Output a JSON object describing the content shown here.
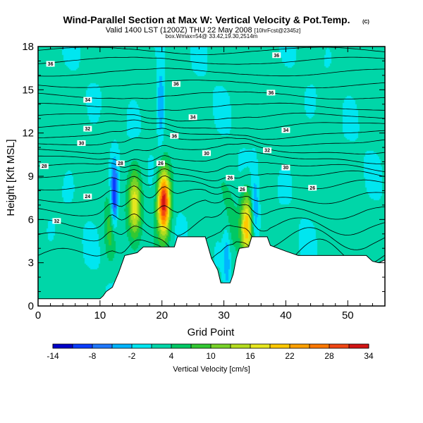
{
  "title": "Wind-Parallel Section at Max W: Vertical Velocity & Pot.Temp.",
  "title_mark": "(C)",
  "subtitle": "Valid 1400 LST (1200Z) THU 22 May 2008",
  "subtitle_sm": "[10hrFcst@2345z]",
  "subtitle2": "box.Wmax=54@ 33.42,19.30,2514m",
  "chart_data": {
    "type": "heatmap",
    "title": "Wind-Parallel Section at Max W: Vertical Velocity & Pot.Temp.",
    "xlabel": "Grid Point",
    "ylabel": "Height [Kft MSL]",
    "xlim": [
      0,
      56
    ],
    "ylim": [
      0,
      18
    ],
    "xticks": [
      0,
      10,
      20,
      30,
      40,
      50
    ],
    "yticks": [
      0,
      3,
      6,
      9,
      12,
      15,
      18
    ],
    "colorbar": {
      "label": "Vertical Velocity [cm/s]",
      "ticks": [
        -14,
        -8,
        -2,
        4,
        10,
        16,
        22,
        28,
        34
      ],
      "levels": [
        -14,
        -11,
        -8,
        -5,
        -2,
        1,
        4,
        7,
        10,
        13,
        16,
        19,
        22,
        25,
        28,
        31,
        34
      ],
      "colors": [
        "#0000c8",
        "#0a3cff",
        "#1e78ff",
        "#00b4ff",
        "#00e6f0",
        "#00d6a8",
        "#00c864",
        "#32c832",
        "#78d228",
        "#b4dc1e",
        "#e6e61e",
        "#ffc800",
        "#ffa000",
        "#ff7800",
        "#f04614",
        "#d21414"
      ]
    },
    "terrain": [
      [
        0,
        0.5
      ],
      [
        5,
        0.5
      ],
      [
        10,
        0.5
      ],
      [
        10.5,
        0.7
      ],
      [
        11,
        1.0
      ],
      [
        12,
        1.3
      ],
      [
        13,
        2.3
      ],
      [
        14,
        3.5
      ],
      [
        16,
        3.7
      ],
      [
        17,
        4.1
      ],
      [
        22,
        4.1
      ],
      [
        22.5,
        4.8
      ],
      [
        27,
        4.8
      ],
      [
        28,
        3.3
      ],
      [
        29,
        2.5
      ],
      [
        29.5,
        1.6
      ],
      [
        31,
        1.6
      ],
      [
        31.5,
        2.2
      ],
      [
        32,
        3.3
      ],
      [
        32.5,
        4.0
      ],
      [
        34,
        4.1
      ],
      [
        34.5,
        4.8
      ],
      [
        37,
        4.8
      ],
      [
        37.5,
        4.2
      ],
      [
        40,
        3.8
      ],
      [
        42,
        3.5
      ],
      [
        53,
        3.5
      ],
      [
        53.5,
        3.3
      ],
      [
        54,
        3.1
      ],
      [
        55,
        3.0
      ],
      [
        56,
        3.2
      ]
    ],
    "updrafts": [
      {
        "x": 20.3,
        "z": 7.2,
        "peak": 34
      },
      {
        "x": 15.6,
        "z": 6.9,
        "peak": 18
      },
      {
        "x": 33.7,
        "z": 5.6,
        "peak": 20
      },
      {
        "x": 11.8,
        "z": 5.5,
        "peak": 9
      },
      {
        "x": 30.8,
        "z": 5.5,
        "peak": 6
      }
    ],
    "downdrafts": [
      {
        "x": 12.3,
        "z": 7.4,
        "peak": -13
      },
      {
        "x": 19.8,
        "z": 14.0,
        "peak": -7
      },
      {
        "x": 30.5,
        "z": 3.6,
        "peak": -5
      },
      {
        "x": 35.0,
        "z": 6.6,
        "peak": -6
      }
    ],
    "isentropes": [
      {
        "z": 3.5,
        "label": ""
      },
      {
        "z": 4.6,
        "label": ""
      },
      {
        "z": 5.6,
        "label": "32"
      },
      {
        "z": 6.6,
        "label": ""
      },
      {
        "z": 7.5,
        "label": "24"
      },
      {
        "z": 8.3,
        "label": ""
      },
      {
        "z": 9.0,
        "label": "28"
      },
      {
        "z": 9.6,
        "label": ""
      },
      {
        "z": 10.2,
        "label": ""
      },
      {
        "z": 10.8,
        "label": "30"
      },
      {
        "z": 11.4,
        "label": ""
      },
      {
        "z": 11.9,
        "label": "32"
      },
      {
        "z": 12.5,
        "label": ""
      },
      {
        "z": 13.1,
        "label": ""
      },
      {
        "z": 13.8,
        "label": "34"
      },
      {
        "z": 14.6,
        "label": ""
      },
      {
        "z": 15.4,
        "label": "36"
      },
      {
        "z": 16.2,
        "label": ""
      },
      {
        "z": 17.0,
        "label": "36"
      },
      {
        "z": 17.7,
        "label": ""
      }
    ],
    "contour_labels": [
      {
        "x": 2,
        "z": 16.8,
        "text": "36"
      },
      {
        "x": 22.3,
        "z": 15.4,
        "text": "36"
      },
      {
        "x": 38.5,
        "z": 17.4,
        "text": "36"
      },
      {
        "x": 37.6,
        "z": 14.8,
        "text": "36"
      },
      {
        "x": 8,
        "z": 14.3,
        "text": "34"
      },
      {
        "x": 25,
        "z": 13.1,
        "text": "34"
      },
      {
        "x": 40,
        "z": 12.2,
        "text": "34"
      },
      {
        "x": 8,
        "z": 12.3,
        "text": "32"
      },
      {
        "x": 22,
        "z": 11.8,
        "text": "36"
      },
      {
        "x": 7,
        "z": 11.3,
        "text": "30"
      },
      {
        "x": 37,
        "z": 10.8,
        "text": "32"
      },
      {
        "x": 1,
        "z": 9.7,
        "text": "28"
      },
      {
        "x": 13.3,
        "z": 9.9,
        "text": "28"
      },
      {
        "x": 19.8,
        "z": 9.9,
        "text": "26"
      },
      {
        "x": 27.2,
        "z": 10.6,
        "text": "30"
      },
      {
        "x": 40,
        "z": 9.6,
        "text": "30"
      },
      {
        "x": 31,
        "z": 8.9,
        "text": "26"
      },
      {
        "x": 33,
        "z": 8.1,
        "text": "26"
      },
      {
        "x": 44.3,
        "z": 8.2,
        "text": "26"
      },
      {
        "x": 8,
        "z": 7.6,
        "text": "24"
      },
      {
        "x": 3,
        "z": 5.9,
        "text": "32"
      }
    ]
  }
}
